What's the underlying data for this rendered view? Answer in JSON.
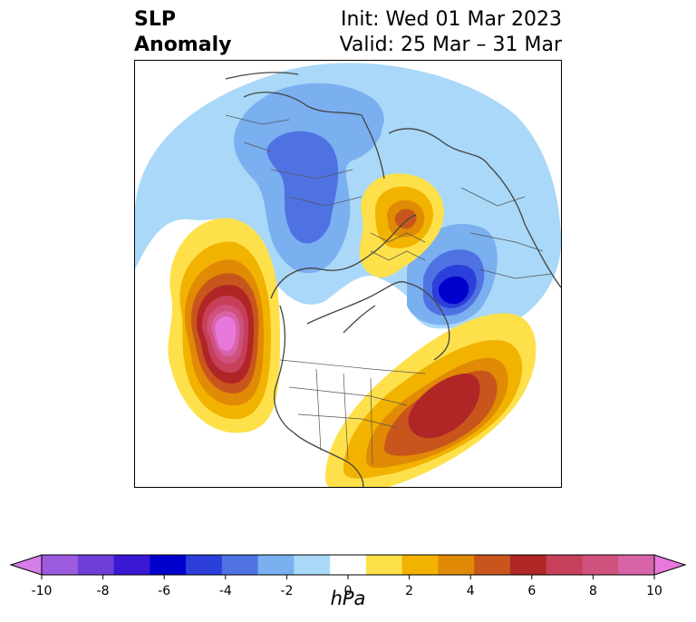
{
  "title": {
    "line1": "SLP",
    "line2": "Anomaly",
    "init": "Init: Wed 01 Mar 2023",
    "valid": "Valid: 25 Mar – 31 Mar"
  },
  "colorbar": {
    "unit": "hPa",
    "ticks": [
      "-10",
      "-8",
      "-6",
      "-4",
      "-2",
      "0",
      "2",
      "4",
      "6",
      "8",
      "10"
    ],
    "colors": [
      "#d67ee8",
      "#9d5ce0",
      "#6e3fd8",
      "#3a18d4",
      "#0000cc",
      "#2c3fdb",
      "#4f72e3",
      "#7aaff0",
      "#a9d8f8",
      "#ffffff",
      "#fee04a",
      "#f2b200",
      "#e08a05",
      "#c8561c",
      "#b02626",
      "#c7405a",
      "#d0507e",
      "#d864a8",
      "#e878dc"
    ]
  },
  "map": {
    "projection": "North Polar Stereographic",
    "fields": [
      {
        "name": "positive-anomaly-north-pacific",
        "max_hpa": 10
      },
      {
        "name": "positive-anomaly-north-atlantic",
        "max_hpa": 6
      },
      {
        "name": "positive-anomaly-arctic",
        "max_hpa": 4
      },
      {
        "name": "negative-anomaly-siberia",
        "min_hpa": -4
      },
      {
        "name": "negative-anomaly-scandinavia",
        "min_hpa": -8
      }
    ]
  }
}
